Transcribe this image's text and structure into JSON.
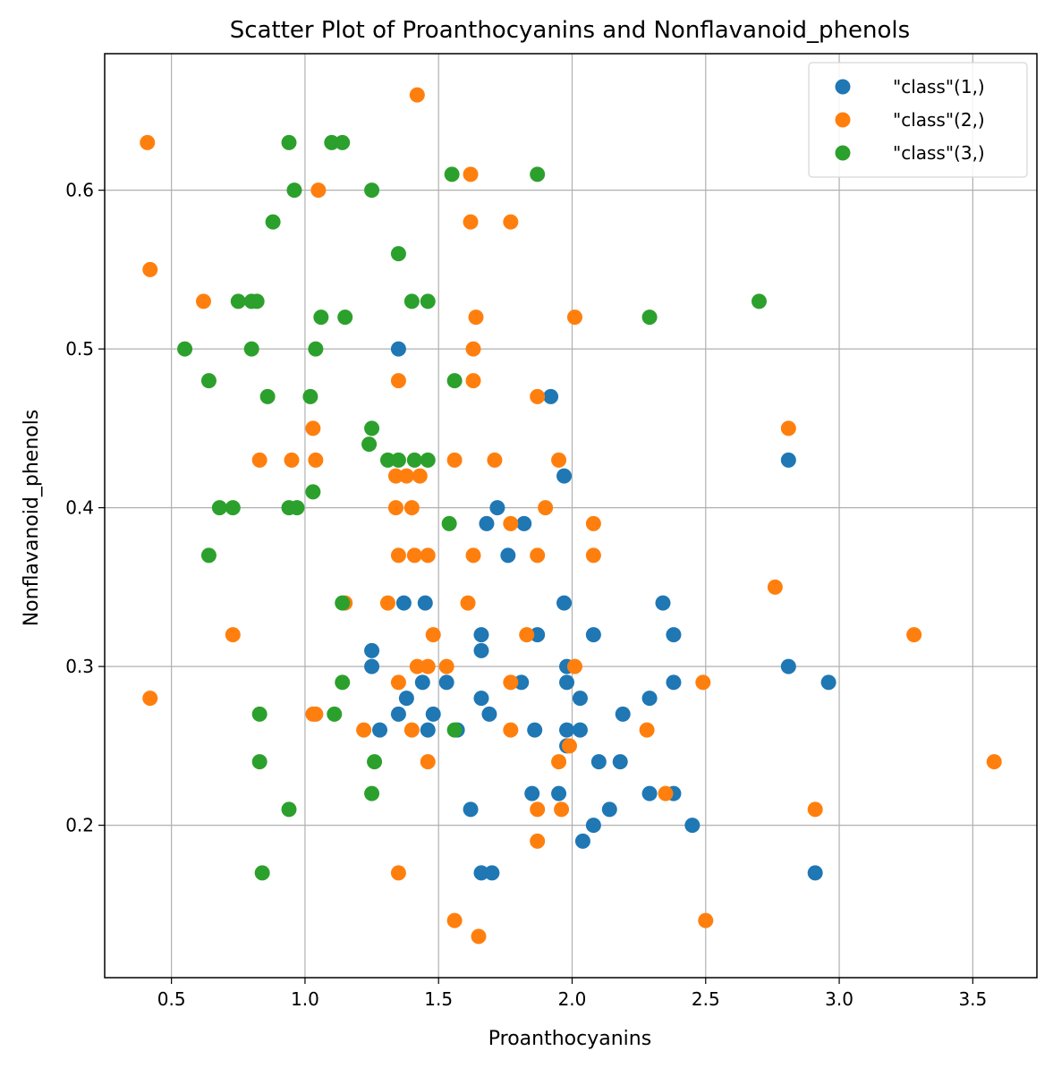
{
  "chart_data": {
    "type": "scatter",
    "title": "Scatter Plot of Proanthocyanins and Nonflavanoid_phenols",
    "xlabel": "Proanthocyanins",
    "ylabel": "Nonflavanoid_phenols",
    "xlim": [
      0.25,
      3.74
    ],
    "ylim": [
      0.104,
      0.686
    ],
    "xticks": [
      0.5,
      1.0,
      1.5,
      2.0,
      2.5,
      3.0,
      3.5
    ],
    "xtick_labels": [
      "0.5",
      "1.0",
      "1.5",
      "2.0",
      "2.5",
      "3.0",
      "3.5"
    ],
    "yticks": [
      0.2,
      0.3,
      0.4,
      0.5,
      0.6
    ],
    "ytick_labels": [
      "0.2",
      "0.3",
      "0.4",
      "0.5",
      "0.6"
    ],
    "grid": true,
    "legend_position": "top-right",
    "series": [
      {
        "name": "\"class\"(1,)",
        "color": "#1f77b4",
        "points": [
          [
            1.35,
            0.5
          ],
          [
            1.92,
            0.47
          ],
          [
            2.81,
            0.43
          ],
          [
            1.97,
            0.42
          ],
          [
            1.72,
            0.4
          ],
          [
            1.68,
            0.39
          ],
          [
            1.82,
            0.39
          ],
          [
            1.76,
            0.37
          ],
          [
            1.37,
            0.34
          ],
          [
            1.45,
            0.34
          ],
          [
            1.97,
            0.34
          ],
          [
            2.34,
            0.34
          ],
          [
            1.66,
            0.32
          ],
          [
            1.87,
            0.32
          ],
          [
            2.08,
            0.32
          ],
          [
            2.38,
            0.32
          ],
          [
            1.25,
            0.31
          ],
          [
            1.66,
            0.31
          ],
          [
            1.25,
            0.3
          ],
          [
            1.98,
            0.3
          ],
          [
            2.81,
            0.3
          ],
          [
            1.44,
            0.29
          ],
          [
            1.53,
            0.29
          ],
          [
            1.81,
            0.29
          ],
          [
            1.98,
            0.29
          ],
          [
            2.38,
            0.29
          ],
          [
            2.96,
            0.29
          ],
          [
            1.38,
            0.28
          ],
          [
            1.66,
            0.28
          ],
          [
            2.03,
            0.28
          ],
          [
            2.29,
            0.28
          ],
          [
            1.35,
            0.27
          ],
          [
            1.48,
            0.27
          ],
          [
            1.69,
            0.27
          ],
          [
            2.19,
            0.27
          ],
          [
            1.28,
            0.26
          ],
          [
            1.46,
            0.26
          ],
          [
            1.57,
            0.26
          ],
          [
            1.86,
            0.26
          ],
          [
            1.98,
            0.26
          ],
          [
            2.03,
            0.26
          ],
          [
            1.98,
            0.25
          ],
          [
            2.1,
            0.24
          ],
          [
            2.18,
            0.24
          ],
          [
            1.85,
            0.22
          ],
          [
            1.95,
            0.22
          ],
          [
            2.29,
            0.22
          ],
          [
            2.38,
            0.22
          ],
          [
            1.62,
            0.21
          ],
          [
            2.14,
            0.21
          ],
          [
            2.08,
            0.2
          ],
          [
            2.45,
            0.2
          ],
          [
            2.04,
            0.19
          ],
          [
            1.66,
            0.17
          ],
          [
            1.7,
            0.17
          ],
          [
            2.91,
            0.17
          ]
        ]
      },
      {
        "name": "\"class\"(2,)",
        "color": "#ff7f0e",
        "points": [
          [
            1.42,
            0.66
          ],
          [
            0.41,
            0.63
          ],
          [
            1.05,
            0.6
          ],
          [
            1.62,
            0.61
          ],
          [
            1.62,
            0.58
          ],
          [
            1.77,
            0.58
          ],
          [
            0.42,
            0.55
          ],
          [
            0.62,
            0.53
          ],
          [
            1.64,
            0.52
          ],
          [
            2.01,
            0.52
          ],
          [
            1.63,
            0.5
          ],
          [
            1.35,
            0.48
          ],
          [
            1.63,
            0.48
          ],
          [
            1.87,
            0.47
          ],
          [
            1.03,
            0.45
          ],
          [
            2.81,
            0.45
          ],
          [
            0.83,
            0.43
          ],
          [
            0.95,
            0.43
          ],
          [
            1.04,
            0.43
          ],
          [
            1.56,
            0.43
          ],
          [
            1.71,
            0.43
          ],
          [
            1.95,
            0.43
          ],
          [
            1.34,
            0.42
          ],
          [
            1.38,
            0.42
          ],
          [
            1.43,
            0.42
          ],
          [
            1.34,
            0.4
          ],
          [
            1.4,
            0.4
          ],
          [
            1.9,
            0.4
          ],
          [
            1.77,
            0.39
          ],
          [
            2.08,
            0.39
          ],
          [
            1.35,
            0.37
          ],
          [
            1.41,
            0.37
          ],
          [
            1.46,
            0.37
          ],
          [
            1.63,
            0.37
          ],
          [
            1.87,
            0.37
          ],
          [
            2.08,
            0.37
          ],
          [
            2.76,
            0.35
          ],
          [
            1.15,
            0.34
          ],
          [
            1.31,
            0.34
          ],
          [
            1.61,
            0.34
          ],
          [
            0.73,
            0.32
          ],
          [
            1.48,
            0.32
          ],
          [
            1.83,
            0.32
          ],
          [
            3.28,
            0.32
          ],
          [
            1.42,
            0.3
          ],
          [
            1.46,
            0.3
          ],
          [
            1.53,
            0.3
          ],
          [
            2.01,
            0.3
          ],
          [
            1.35,
            0.29
          ],
          [
            1.77,
            0.29
          ],
          [
            2.49,
            0.29
          ],
          [
            1.03,
            0.27
          ],
          [
            1.04,
            0.27
          ],
          [
            1.22,
            0.26
          ],
          [
            1.4,
            0.26
          ],
          [
            1.77,
            0.26
          ],
          [
            2.28,
            0.26
          ],
          [
            1.99,
            0.25
          ],
          [
            1.46,
            0.24
          ],
          [
            1.95,
            0.24
          ],
          [
            3.58,
            0.24
          ],
          [
            2.35,
            0.22
          ],
          [
            1.87,
            0.21
          ],
          [
            1.96,
            0.21
          ],
          [
            2.91,
            0.21
          ],
          [
            1.87,
            0.19
          ],
          [
            0.42,
            0.28
          ],
          [
            1.35,
            0.17
          ],
          [
            1.56,
            0.14
          ],
          [
            2.5,
            0.14
          ],
          [
            1.65,
            0.13
          ]
        ]
      },
      {
        "name": "\"class\"(3,)",
        "color": "#2ca02c",
        "points": [
          [
            0.94,
            0.63
          ],
          [
            1.1,
            0.63
          ],
          [
            1.14,
            0.63
          ],
          [
            0.96,
            0.6
          ],
          [
            1.25,
            0.6
          ],
          [
            1.55,
            0.61
          ],
          [
            1.87,
            0.61
          ],
          [
            0.88,
            0.58
          ],
          [
            1.35,
            0.56
          ],
          [
            0.75,
            0.53
          ],
          [
            0.8,
            0.53
          ],
          [
            0.82,
            0.53
          ],
          [
            1.4,
            0.53
          ],
          [
            1.46,
            0.53
          ],
          [
            2.7,
            0.53
          ],
          [
            1.06,
            0.52
          ],
          [
            1.15,
            0.52
          ],
          [
            2.29,
            0.52
          ],
          [
            0.55,
            0.5
          ],
          [
            0.8,
            0.5
          ],
          [
            1.04,
            0.5
          ],
          [
            0.64,
            0.48
          ],
          [
            1.56,
            0.48
          ],
          [
            0.86,
            0.47
          ],
          [
            1.02,
            0.47
          ],
          [
            1.25,
            0.45
          ],
          [
            1.24,
            0.44
          ],
          [
            1.31,
            0.43
          ],
          [
            1.35,
            0.43
          ],
          [
            1.41,
            0.43
          ],
          [
            1.46,
            0.43
          ],
          [
            1.03,
            0.41
          ],
          [
            0.68,
            0.4
          ],
          [
            0.73,
            0.4
          ],
          [
            0.94,
            0.4
          ],
          [
            0.97,
            0.4
          ],
          [
            1.54,
            0.39
          ],
          [
            0.64,
            0.37
          ],
          [
            1.14,
            0.34
          ],
          [
            1.14,
            0.29
          ],
          [
            0.83,
            0.27
          ],
          [
            1.11,
            0.27
          ],
          [
            1.56,
            0.26
          ],
          [
            0.83,
            0.24
          ],
          [
            1.26,
            0.24
          ],
          [
            1.25,
            0.22
          ],
          [
            0.94,
            0.21
          ],
          [
            0.84,
            0.17
          ]
        ]
      }
    ]
  }
}
